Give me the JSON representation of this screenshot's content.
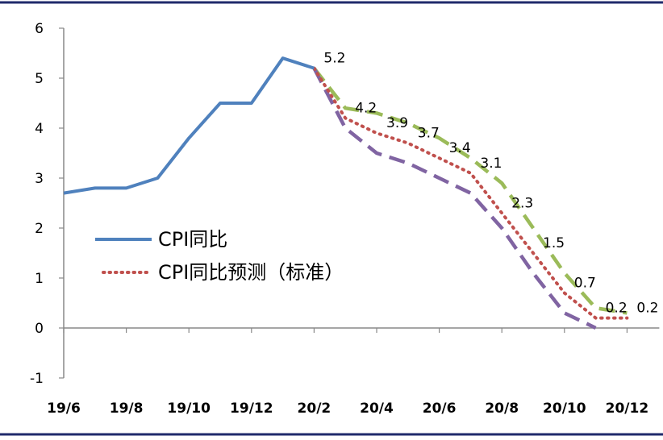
{
  "chart_data": {
    "type": "line",
    "title": "",
    "xlabel": "",
    "ylabel": "",
    "ylim": [
      -1,
      6
    ],
    "yticks": [
      -1,
      0,
      1,
      2,
      3,
      4,
      5,
      6
    ],
    "x": [
      "19/6",
      "19/7",
      "19/8",
      "19/9",
      "19/10",
      "19/11",
      "19/12",
      "20/1",
      "20/2",
      "20/3",
      "20/4",
      "20/5",
      "20/6",
      "20/7",
      "20/8",
      "20/9",
      "20/10",
      "20/11",
      "20/12"
    ],
    "xtick_labels": [
      "19/6",
      "19/8",
      "19/10",
      "19/12",
      "20/2",
      "20/4",
      "20/6",
      "20/8",
      "20/10",
      "20/12"
    ],
    "grid": false,
    "legend_position": "center-left",
    "series": [
      {
        "name": "CPI同比",
        "style": "solid",
        "color": "#4F81BD",
        "values": [
          2.7,
          2.8,
          2.8,
          3.0,
          3.8,
          4.5,
          4.5,
          5.4,
          5.2,
          null,
          null,
          null,
          null,
          null,
          null,
          null,
          null,
          null,
          null
        ]
      },
      {
        "name": "",
        "style": "dashed",
        "color": "#9BBB59",
        "values": [
          null,
          null,
          null,
          null,
          null,
          null,
          null,
          null,
          5.2,
          4.4,
          4.3,
          4.1,
          3.8,
          3.4,
          2.9,
          2.0,
          1.1,
          0.4,
          0.3
        ]
      },
      {
        "name": "CPI同比预测（标准）",
        "style": "dotted",
        "color": "#C0504D",
        "values": [
          null,
          null,
          null,
          null,
          null,
          null,
          null,
          null,
          5.2,
          4.2,
          3.9,
          3.7,
          3.4,
          3.1,
          2.3,
          1.5,
          0.7,
          0.2,
          0.2
        ],
        "data_labels": [
          "",
          "",
          "",
          "",
          "",
          "",
          "",
          "",
          "5.2",
          "4.2",
          "3.9",
          "3.7",
          "3.4",
          "3.1",
          "2.3",
          "1.5",
          "0.7",
          "0.2",
          "0.2"
        ]
      },
      {
        "name": "",
        "style": "dashed",
        "color": "#8064A2",
        "values": [
          null,
          null,
          null,
          null,
          null,
          null,
          null,
          null,
          5.2,
          4.0,
          3.5,
          3.3,
          3.0,
          2.7,
          2.0,
          1.1,
          0.3,
          0.0,
          null
        ]
      }
    ]
  }
}
